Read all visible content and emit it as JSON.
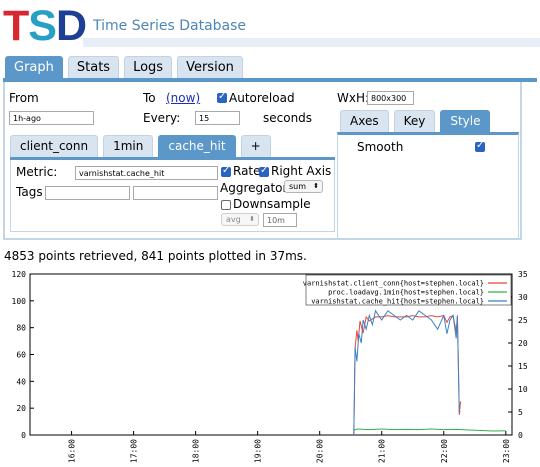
{
  "header": {
    "logo_letters": [
      {
        "char": "T",
        "color": "#d92730"
      },
      {
        "char": "S",
        "color": "#27a0c6"
      },
      {
        "char": "D",
        "color": "#1e3f95"
      }
    ],
    "title": "Time Series Database"
  },
  "top_tabs": [
    {
      "label": "Graph",
      "active": true
    },
    {
      "label": "Stats",
      "active": false
    },
    {
      "label": "Logs",
      "active": false
    },
    {
      "label": "Version",
      "active": false
    }
  ],
  "form": {
    "from_label": "From",
    "from_value": "1h-ago",
    "to_label": "To",
    "to_now": "(now)",
    "autoreload_label": "Autoreload",
    "autoreload_checked": true,
    "every_label": "Every:",
    "every_value": "15",
    "seconds_label": "seconds",
    "wxh_label": "WxH:",
    "wxh_value": "800x300"
  },
  "metric_tabs": [
    {
      "label": "client_conn",
      "active": false
    },
    {
      "label": "1min",
      "active": false
    },
    {
      "label": "cache_hit",
      "active": true
    },
    {
      "label": "+",
      "active": false
    }
  ],
  "metric": {
    "metric_label": "Metric:",
    "metric_value": "varnishstat.cache_hit",
    "tags_label": "Tags",
    "rate_label": "Rate",
    "rate_checked": true,
    "right_axis_label": "Right Axis",
    "right_axis_checked": true,
    "aggregator_label": "Aggregator:",
    "aggregator_value": "sum",
    "downsample_label": "Downsample",
    "downsample_checked": false,
    "downsample_func": "avg",
    "downsample_interval": "10m"
  },
  "side_tabs": [
    {
      "label": "Axes",
      "active": false
    },
    {
      "label": "Key",
      "active": false
    },
    {
      "label": "Style",
      "active": true
    }
  ],
  "style": {
    "smooth_label": "Smooth",
    "smooth_checked": true
  },
  "status": "4853 points retrieved, 841 points plotted in 37ms.",
  "chart_data": {
    "type": "line",
    "x_ticks": [
      "16:00",
      "17:00",
      "18:00",
      "19:00",
      "20:00",
      "21:00",
      "22:00",
      "23:00"
    ],
    "y_left_ticks": [
      0,
      20,
      40,
      60,
      80,
      100,
      120
    ],
    "y_right_ticks": [
      0,
      5,
      10,
      15,
      20,
      25,
      30,
      35
    ],
    "ylim_left": [
      0,
      120
    ],
    "ylim_right": [
      0,
      35
    ],
    "xlim_hours": [
      15.33,
      23.1
    ],
    "legend": "top-right",
    "series": [
      {
        "name": "varnishstat.client_conn{host=stephen.local}",
        "color": "#e8453c",
        "axis": "left",
        "x": [
          20.55,
          20.57,
          20.6,
          20.62,
          20.65,
          20.7,
          20.75,
          20.8,
          20.9,
          21.0,
          21.1,
          21.2,
          21.3,
          21.4,
          21.5,
          21.6,
          21.7,
          21.8,
          21.9,
          22.0,
          22.05,
          22.1,
          22.15,
          22.2,
          22.22,
          22.25,
          22.27
        ],
        "y": [
          0,
          65,
          78,
          70,
          85,
          76,
          88,
          85,
          88,
          88,
          89,
          88,
          88,
          88,
          89,
          88,
          88,
          89,
          88,
          89,
          84,
          88,
          89,
          77,
          89,
          15,
          25
        ]
      },
      {
        "name": "proc.loadavg.1min{host=stephen.local}",
        "color": "#33b24a",
        "axis": "left",
        "x": [
          20.55,
          20.6,
          20.8,
          21.0,
          21.2,
          21.4,
          21.6,
          21.8,
          22.0,
          22.2,
          22.5,
          22.8,
          23.0
        ],
        "y": [
          3.5,
          4.5,
          4.0,
          4.5,
          4.0,
          4.2,
          4.0,
          4.5,
          4.0,
          4.2,
          3.5,
          3.0,
          3.2
        ]
      },
      {
        "name": "varnishstat.cache_hit{host=stephen.local}",
        "color": "#3b82c4",
        "axis": "right",
        "x": [
          20.55,
          20.57,
          20.6,
          20.63,
          20.67,
          20.7,
          20.75,
          20.8,
          20.85,
          20.9,
          21.0,
          21.1,
          21.2,
          21.3,
          21.4,
          21.5,
          21.6,
          21.7,
          21.8,
          21.9,
          22.0,
          22.05,
          22.1,
          22.15,
          22.2,
          22.22,
          22.25,
          22.27
        ],
        "y": [
          0,
          19,
          16,
          22,
          20,
          25,
          23,
          26,
          24,
          27,
          25,
          27,
          26,
          25,
          26,
          25,
          27,
          26,
          25,
          23,
          26,
          22,
          25,
          26,
          21,
          26,
          5,
          5
        ]
      }
    ]
  }
}
